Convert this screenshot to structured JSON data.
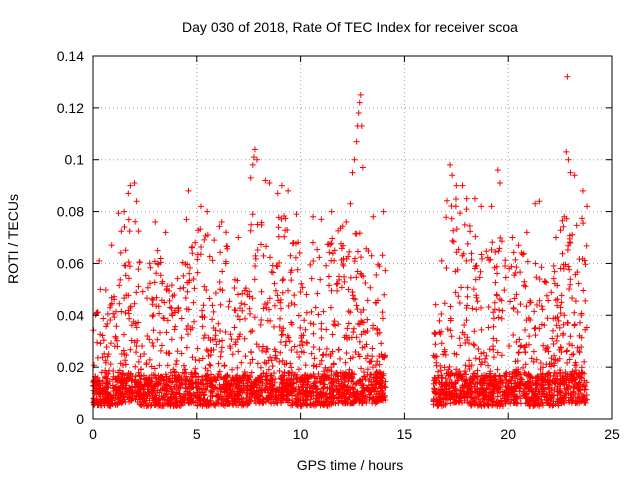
{
  "chart_data": {
    "type": "scatter",
    "title": "Day 030 of 2018, Rate Of TEC Index for receiver scoa",
    "xlabel": "GPS time / hours",
    "ylabel": "ROTI / TECUs",
    "xlim": [
      0,
      25
    ],
    "ylim": [
      0,
      0.14
    ],
    "x_ticks": [
      0,
      5,
      10,
      15,
      20,
      25
    ],
    "x_tick_labels": [
      "0",
      "5",
      "10",
      "15",
      "20",
      "25"
    ],
    "y_ticks": [
      0,
      0.02,
      0.04,
      0.06,
      0.08,
      0.1,
      0.12,
      0.14
    ],
    "y_tick_labels": [
      "0",
      "0.02",
      "0.04",
      "0.06",
      "0.08",
      "0.1",
      "0.12",
      "0.14"
    ],
    "grid": true,
    "marker": "+",
    "marker_color": "#ff0000",
    "data_gap_hours": [
      14.15,
      16.4
    ],
    "series": [
      {
        "name": "ROTI",
        "points": [
          [
            0.3,
            0.061
          ],
          [
            0.35,
            0.05
          ],
          [
            0.9,
            0.067
          ],
          [
            1.5,
            0.08
          ],
          [
            1.7,
            0.087
          ],
          [
            1.8,
            0.09
          ],
          [
            2.0,
            0.091
          ],
          [
            2.1,
            0.084
          ],
          [
            3.0,
            0.076
          ],
          [
            3.5,
            0.072
          ],
          [
            4.6,
            0.088
          ],
          [
            4.5,
            0.077
          ],
          [
            5.2,
            0.082
          ],
          [
            5.5,
            0.08
          ],
          [
            6.2,
            0.076
          ],
          [
            7.0,
            0.07
          ],
          [
            7.6,
            0.093
          ],
          [
            7.7,
            0.098
          ],
          [
            7.75,
            0.101
          ],
          [
            7.8,
            0.104
          ],
          [
            7.9,
            0.1
          ],
          [
            8.3,
            0.092
          ],
          [
            8.5,
            0.091
          ],
          [
            8.9,
            0.087
          ],
          [
            9.1,
            0.09
          ],
          [
            9.4,
            0.088
          ],
          [
            9.8,
            0.079
          ],
          [
            10.6,
            0.078
          ],
          [
            11.0,
            0.077
          ],
          [
            11.5,
            0.08
          ],
          [
            12.2,
            0.076
          ],
          [
            12.4,
            0.083
          ],
          [
            12.5,
            0.095
          ],
          [
            12.6,
            0.1
          ],
          [
            12.7,
            0.107
          ],
          [
            12.75,
            0.113
          ],
          [
            12.8,
            0.118
          ],
          [
            12.85,
            0.122
          ],
          [
            12.9,
            0.125
          ],
          [
            12.95,
            0.113
          ],
          [
            13.0,
            0.097
          ],
          [
            13.5,
            0.078
          ],
          [
            14.0,
            0.08
          ],
          [
            16.8,
            0.061
          ],
          [
            17.2,
            0.098
          ],
          [
            17.3,
            0.094
          ],
          [
            17.5,
            0.09
          ],
          [
            17.8,
            0.09
          ],
          [
            18.0,
            0.085
          ],
          [
            18.4,
            0.085
          ],
          [
            18.7,
            0.082
          ],
          [
            19.2,
            0.082
          ],
          [
            19.5,
            0.096
          ],
          [
            19.6,
            0.091
          ],
          [
            20.2,
            0.07
          ],
          [
            20.5,
            0.067
          ],
          [
            20.9,
            0.072
          ],
          [
            21.3,
            0.083
          ],
          [
            21.5,
            0.084
          ],
          [
            22.3,
            0.07
          ],
          [
            22.7,
            0.078
          ],
          [
            22.8,
            0.103
          ],
          [
            22.85,
            0.132
          ],
          [
            22.9,
            0.1
          ],
          [
            23.0,
            0.095
          ],
          [
            23.2,
            0.094
          ],
          [
            23.6,
            0.088
          ],
          [
            23.8,
            0.082
          ]
        ],
        "bands": [
          {
            "x": [
              0.0,
              0.5
            ],
            "ymin": 0.005,
            "ymax": 0.045
          },
          {
            "x": [
              0.5,
              1.2
            ],
            "ymin": 0.005,
            "ymax": 0.05
          },
          {
            "x": [
              1.2,
              2.2
            ],
            "ymin": 0.006,
            "ymax": 0.08
          },
          {
            "x": [
              2.2,
              3.5
            ],
            "ymin": 0.005,
            "ymax": 0.065
          },
          {
            "x": [
              3.5,
              4.3
            ],
            "ymin": 0.005,
            "ymax": 0.055
          },
          {
            "x": [
              4.3,
              5.0
            ],
            "ymin": 0.006,
            "ymax": 0.07
          },
          {
            "x": [
              5.0,
              6.5
            ],
            "ymin": 0.005,
            "ymax": 0.075
          },
          {
            "x": [
              6.5,
              7.5
            ],
            "ymin": 0.005,
            "ymax": 0.055
          },
          {
            "x": [
              7.5,
              9.5
            ],
            "ymin": 0.006,
            "ymax": 0.08
          },
          {
            "x": [
              9.5,
              11.5
            ],
            "ymin": 0.005,
            "ymax": 0.07
          },
          {
            "x": [
              11.5,
              13.2
            ],
            "ymin": 0.006,
            "ymax": 0.075
          },
          {
            "x": [
              13.2,
              14.1
            ],
            "ymin": 0.006,
            "ymax": 0.07
          },
          {
            "x": [
              16.4,
              17.0
            ],
            "ymin": 0.005,
            "ymax": 0.05
          },
          {
            "x": [
              17.0,
              18.2
            ],
            "ymin": 0.006,
            "ymax": 0.085
          },
          {
            "x": [
              18.2,
              19.8
            ],
            "ymin": 0.005,
            "ymax": 0.075
          },
          {
            "x": [
              19.8,
              21.0
            ],
            "ymin": 0.006,
            "ymax": 0.065
          },
          {
            "x": [
              21.0,
              22.5
            ],
            "ymin": 0.005,
            "ymax": 0.06
          },
          {
            "x": [
              22.5,
              23.8
            ],
            "ymin": 0.006,
            "ymax": 0.078
          }
        ]
      }
    ]
  }
}
